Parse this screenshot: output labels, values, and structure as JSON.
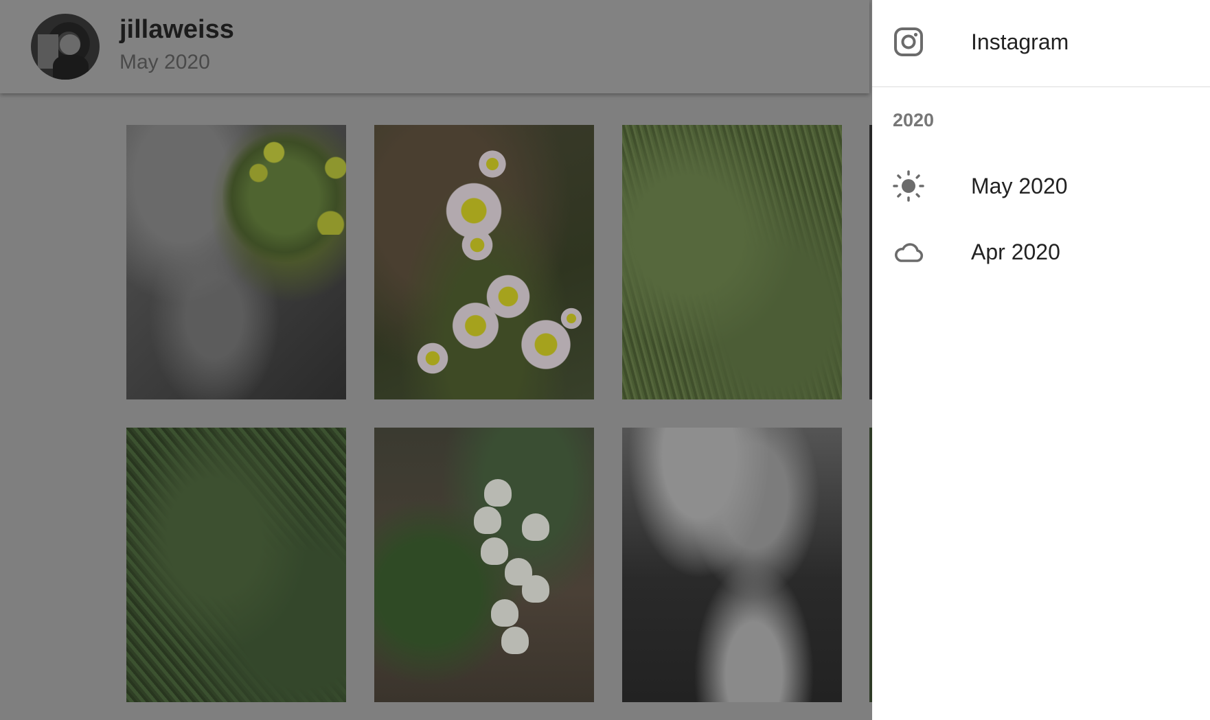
{
  "header": {
    "username": "jillaweiss",
    "subtitle": "May 2020"
  },
  "drawer": {
    "top_link": {
      "label": "Instagram",
      "icon": "instagram-icon"
    },
    "section_heading": "2020",
    "items": [
      {
        "label": "May 2020",
        "icon": "sun-icon"
      },
      {
        "label": "Apr 2020",
        "icon": "cloud-icon"
      }
    ]
  }
}
